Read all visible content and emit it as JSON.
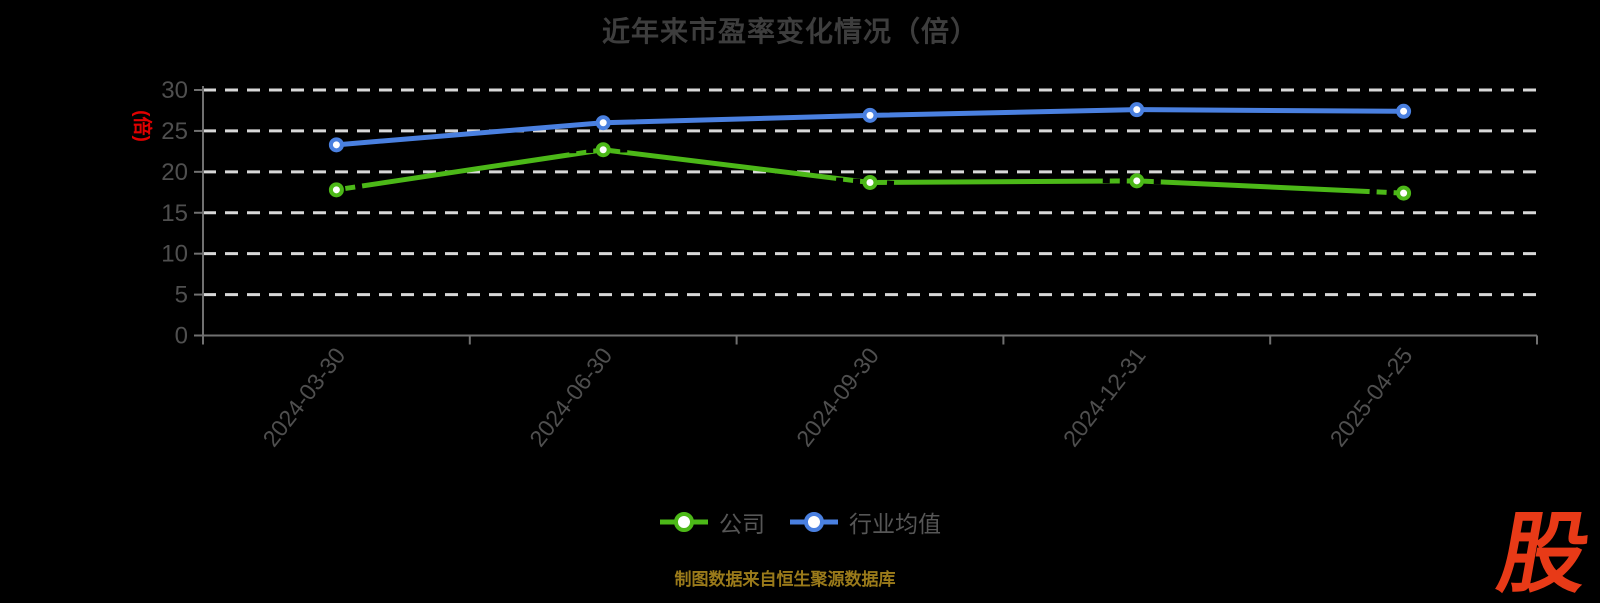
{
  "header": {
    "title": "近年来市盈率变化情况（倍）"
  },
  "chart_data": {
    "type": "line",
    "title": "近年来市盈率变化情况（倍）",
    "categories": [
      "2024-03-30",
      "2024-06-30",
      "2024-09-30",
      "2024-12-31",
      "2025-04-25"
    ],
    "series": [
      {
        "name": "公司",
        "color": "#4cb818",
        "values": [
          17.8,
          22.7,
          18.7,
          18.9,
          17.4
        ],
        "marker": "circle",
        "dashed_accent": true
      },
      {
        "name": "行业均值",
        "color": "#4a80e0",
        "values": [
          23.3,
          26.0,
          26.9,
          27.6,
          27.4
        ],
        "marker": "circle",
        "dashed_accent": false
      }
    ],
    "xlabel": "",
    "ylabel": "(倍)",
    "ylabel_color": "#e00000",
    "ylim": [
      0,
      30
    ],
    "ytick_step": 5,
    "yticks": [
      0,
      5,
      10,
      15,
      20,
      25,
      30
    ],
    "grid": {
      "show": true,
      "style": "dashed",
      "color": "#d8d8d8"
    },
    "axis_color": "#707070",
    "tick_label_color": "#4f4f4f",
    "legend_position": "bottom",
    "background": "#000000"
  },
  "footer": {
    "source_note": "制图数据来自恒生聚源数据库",
    "source_color": "#9a7a1a",
    "logo_text": "股",
    "logo_color": "#e83a17"
  }
}
